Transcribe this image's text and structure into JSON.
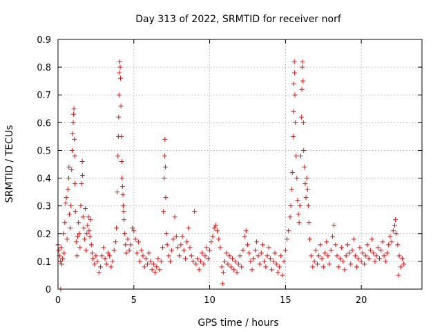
{
  "chart_data": {
    "type": "scatter",
    "title": "Day 313 of 2022, SRMTID for receiver norf",
    "xlabel": "GPS time / hours",
    "ylabel": "SRMTID / TECUs",
    "xlim": [
      0,
      24
    ],
    "ylim": [
      0,
      0.9
    ],
    "xticks": [
      0,
      5,
      10,
      15,
      20
    ],
    "xtick_labels": [
      "0",
      "5",
      "10",
      "15",
      "20"
    ],
    "yticks": [
      0,
      0.1,
      0.2,
      0.3,
      0.4,
      0.5,
      0.6,
      0.7,
      0.8,
      0.9
    ],
    "ytick_labels": [
      "0",
      "0.1",
      "0.2",
      "0.3",
      "0.4",
      "0.5",
      "0.6",
      "0.7",
      "0.8",
      "0.9"
    ],
    "grid": true,
    "marker": "+",
    "color": "#ff0000",
    "series": [
      {
        "name": "norf",
        "points": [
          [
            0.0,
            0.16
          ],
          [
            0.05,
            0.14
          ],
          [
            0.1,
            0.12
          ],
          [
            0.15,
            0.1
          ],
          [
            0.18,
            0.0
          ],
          [
            0.2,
            0.15
          ],
          [
            0.25,
            0.09
          ],
          [
            0.3,
            0.11
          ],
          [
            0.35,
            0.2
          ],
          [
            0.4,
            0.13
          ],
          [
            0.45,
            0.24
          ],
          [
            0.5,
            0.31
          ],
          [
            0.55,
            0.33
          ],
          [
            0.6,
            0.18
          ],
          [
            0.65,
            0.36
          ],
          [
            0.7,
            0.4
          ],
          [
            0.72,
            0.44
          ],
          [
            0.75,
            0.27
          ],
          [
            0.8,
            0.22
          ],
          [
            0.85,
            0.3
          ],
          [
            0.9,
            0.43
          ],
          [
            0.93,
            0.5
          ],
          [
            0.96,
            0.56
          ],
          [
            1.0,
            0.6
          ],
          [
            1.02,
            0.63
          ],
          [
            1.05,
            0.65
          ],
          [
            1.08,
            0.54
          ],
          [
            1.1,
            0.48
          ],
          [
            1.12,
            0.38
          ],
          [
            1.15,
            0.28
          ],
          [
            1.2,
            0.17
          ],
          [
            1.25,
            0.12
          ],
          [
            1.3,
            0.19
          ],
          [
            1.35,
            0.24
          ],
          [
            1.4,
            0.2
          ],
          [
            1.45,
            0.15
          ],
          [
            1.5,
            0.3
          ],
          [
            1.55,
            0.38
          ],
          [
            1.6,
            0.46
          ],
          [
            1.62,
            0.41
          ],
          [
            1.65,
            0.26
          ],
          [
            1.7,
            0.22
          ],
          [
            1.75,
            0.18
          ],
          [
            1.8,
            0.29
          ],
          [
            1.85,
            0.14
          ],
          [
            1.9,
            0.2
          ],
          [
            1.95,
            0.23
          ],
          [
            2.0,
            0.26
          ],
          [
            2.05,
            0.21
          ],
          [
            2.1,
            0.19
          ],
          [
            2.15,
            0.25
          ],
          [
            2.2,
            0.16
          ],
          [
            2.25,
            0.13
          ],
          [
            2.3,
            0.11
          ],
          [
            2.4,
            0.09
          ],
          [
            2.5,
            0.12
          ],
          [
            2.6,
            0.1
          ],
          [
            2.7,
            0.06
          ],
          [
            2.8,
            0.08
          ],
          [
            2.9,
            0.12
          ],
          [
            3.0,
            0.15
          ],
          [
            3.1,
            0.11
          ],
          [
            3.2,
            0.09
          ],
          [
            3.3,
            0.13
          ],
          [
            3.4,
            0.12
          ],
          [
            3.5,
            0.08
          ],
          [
            3.6,
            0.1
          ],
          [
            3.7,
            0.14
          ],
          [
            3.8,
            0.17
          ],
          [
            3.85,
            0.22
          ],
          [
            3.9,
            0.35
          ],
          [
            3.95,
            0.48
          ],
          [
            3.98,
            0.55
          ],
          [
            4.0,
            0.62
          ],
          [
            4.02,
            0.7
          ],
          [
            4.05,
            0.78
          ],
          [
            4.08,
            0.82
          ],
          [
            4.1,
            0.8
          ],
          [
            4.12,
            0.76
          ],
          [
            4.15,
            0.66
          ],
          [
            4.18,
            0.55
          ],
          [
            4.2,
            0.46
          ],
          [
            4.22,
            0.4
          ],
          [
            4.25,
            0.37
          ],
          [
            4.28,
            0.34
          ],
          [
            4.3,
            0.3
          ],
          [
            4.33,
            0.28
          ],
          [
            4.35,
            0.25
          ],
          [
            4.4,
            0.2
          ],
          [
            4.45,
            0.16
          ],
          [
            4.5,
            0.13
          ],
          [
            4.6,
            0.18
          ],
          [
            4.7,
            0.14
          ],
          [
            4.8,
            0.16
          ],
          [
            4.9,
            0.22
          ],
          [
            5.0,
            0.21
          ],
          [
            5.1,
            0.18
          ],
          [
            5.2,
            0.13
          ],
          [
            5.3,
            0.17
          ],
          [
            5.4,
            0.1
          ],
          [
            5.5,
            0.14
          ],
          [
            5.6,
            0.12
          ],
          [
            5.7,
            0.08
          ],
          [
            5.8,
            0.11
          ],
          [
            5.9,
            0.09
          ],
          [
            6.0,
            0.13
          ],
          [
            6.1,
            0.1
          ],
          [
            6.2,
            0.07
          ],
          [
            6.3,
            0.09
          ],
          [
            6.4,
            0.06
          ],
          [
            6.5,
            0.08
          ],
          [
            6.6,
            0.11
          ],
          [
            6.7,
            0.07
          ],
          [
            6.8,
            0.1
          ],
          [
            6.9,
            0.15
          ],
          [
            6.95,
            0.28
          ],
          [
            7.0,
            0.4
          ],
          [
            7.03,
            0.48
          ],
          [
            7.05,
            0.54
          ],
          [
            7.08,
            0.44
          ],
          [
            7.1,
            0.33
          ],
          [
            7.15,
            0.2
          ],
          [
            7.2,
            0.16
          ],
          [
            7.3,
            0.12
          ],
          [
            7.4,
            0.1
          ],
          [
            7.5,
            0.14
          ],
          [
            7.6,
            0.18
          ],
          [
            7.7,
            0.26
          ],
          [
            7.8,
            0.19
          ],
          [
            7.9,
            0.15
          ],
          [
            8.0,
            0.12
          ],
          [
            8.1,
            0.16
          ],
          [
            8.2,
            0.19
          ],
          [
            8.3,
            0.14
          ],
          [
            8.4,
            0.11
          ],
          [
            8.5,
            0.17
          ],
          [
            8.6,
            0.22
          ],
          [
            8.7,
            0.15
          ],
          [
            8.8,
            0.12
          ],
          [
            8.9,
            0.1
          ],
          [
            9.0,
            0.28
          ],
          [
            9.1,
            0.09
          ],
          [
            9.2,
            0.11
          ],
          [
            9.3,
            0.07
          ],
          [
            9.4,
            0.1
          ],
          [
            9.5,
            0.13
          ],
          [
            9.6,
            0.09
          ],
          [
            9.7,
            0.12
          ],
          [
            9.8,
            0.15
          ],
          [
            9.9,
            0.11
          ],
          [
            10.0,
            0.14
          ],
          [
            10.1,
            0.17
          ],
          [
            10.2,
            0.19
          ],
          [
            10.3,
            0.22
          ],
          [
            10.4,
            0.23
          ],
          [
            10.5,
            0.21
          ],
          [
            10.6,
            0.18
          ],
          [
            10.7,
            0.15
          ],
          [
            10.8,
            0.08
          ],
          [
            10.85,
            0.02
          ],
          [
            10.9,
            0.06
          ],
          [
            11.0,
            0.1
          ],
          [
            11.1,
            0.13
          ],
          [
            11.2,
            0.09
          ],
          [
            11.3,
            0.12
          ],
          [
            11.4,
            0.08
          ],
          [
            11.5,
            0.11
          ],
          [
            11.6,
            0.07
          ],
          [
            11.7,
            0.1
          ],
          [
            11.8,
            0.06
          ],
          [
            11.9,
            0.09
          ],
          [
            12.0,
            0.12
          ],
          [
            12.1,
            0.08
          ],
          [
            12.2,
            0.14
          ],
          [
            12.3,
            0.19
          ],
          [
            12.4,
            0.21
          ],
          [
            12.5,
            0.16
          ],
          [
            12.6,
            0.13
          ],
          [
            12.7,
            0.1
          ],
          [
            12.8,
            0.07
          ],
          [
            12.9,
            0.11
          ],
          [
            13.0,
            0.14
          ],
          [
            13.1,
            0.17
          ],
          [
            13.2,
            0.12
          ],
          [
            13.3,
            0.09
          ],
          [
            13.4,
            0.13
          ],
          [
            13.5,
            0.16
          ],
          [
            13.6,
            0.1
          ],
          [
            13.7,
            0.08
          ],
          [
            13.8,
            0.12
          ],
          [
            13.9,
            0.15
          ],
          [
            14.0,
            0.11
          ],
          [
            14.1,
            0.07
          ],
          [
            14.2,
            0.1
          ],
          [
            14.3,
            0.13
          ],
          [
            14.4,
            0.09
          ],
          [
            14.5,
            0.06
          ],
          [
            14.6,
            0.08
          ],
          [
            14.7,
            0.12
          ],
          [
            14.8,
            0.05
          ],
          [
            14.9,
            0.1
          ],
          [
            15.0,
            0.14
          ],
          [
            15.1,
            0.18
          ],
          [
            15.2,
            0.21
          ],
          [
            15.3,
            0.26
          ],
          [
            15.35,
            0.3
          ],
          [
            15.4,
            0.36
          ],
          [
            15.45,
            0.42
          ],
          [
            15.5,
            0.55
          ],
          [
            15.53,
            0.64
          ],
          [
            15.55,
            0.74
          ],
          [
            15.58,
            0.82
          ],
          [
            15.6,
            0.78
          ],
          [
            15.62,
            0.7
          ],
          [
            15.65,
            0.6
          ],
          [
            15.7,
            0.48
          ],
          [
            15.75,
            0.4
          ],
          [
            15.8,
            0.32
          ],
          [
            15.85,
            0.27
          ],
          [
            15.9,
            0.24
          ],
          [
            15.95,
            0.3
          ],
          [
            16.0,
            0.48
          ],
          [
            16.05,
            0.62
          ],
          [
            16.08,
            0.72
          ],
          [
            16.1,
            0.8
          ],
          [
            16.12,
            0.82
          ],
          [
            16.15,
            0.75
          ],
          [
            16.18,
            0.6
          ],
          [
            16.2,
            0.5
          ],
          [
            16.25,
            0.44
          ],
          [
            16.3,
            0.38
          ],
          [
            16.35,
            0.33
          ],
          [
            16.4,
            0.4
          ],
          [
            16.45,
            0.36
          ],
          [
            16.5,
            0.3
          ],
          [
            16.55,
            0.24
          ],
          [
            16.6,
            0.18
          ],
          [
            16.7,
            0.12
          ],
          [
            16.8,
            0.08
          ],
          [
            16.9,
            0.1
          ],
          [
            17.0,
            0.14
          ],
          [
            17.1,
            0.09
          ],
          [
            17.2,
            0.12
          ],
          [
            17.3,
            0.16
          ],
          [
            17.4,
            0.11
          ],
          [
            17.5,
            0.08
          ],
          [
            17.6,
            0.13
          ],
          [
            17.7,
            0.17
          ],
          [
            17.8,
            0.12
          ],
          [
            17.9,
            0.09
          ],
          [
            18.0,
            0.14
          ],
          [
            18.1,
            0.19
          ],
          [
            18.2,
            0.23
          ],
          [
            18.3,
            0.16
          ],
          [
            18.4,
            0.12
          ],
          [
            18.5,
            0.08
          ],
          [
            18.6,
            0.11
          ],
          [
            18.7,
            0.15
          ],
          [
            18.8,
            0.1
          ],
          [
            18.9,
            0.07
          ],
          [
            19.0,
            0.12
          ],
          [
            19.1,
            0.16
          ],
          [
            19.2,
            0.13
          ],
          [
            19.3,
            0.09
          ],
          [
            19.4,
            0.14
          ],
          [
            19.5,
            0.18
          ],
          [
            19.6,
            0.12
          ],
          [
            19.7,
            0.08
          ],
          [
            19.8,
            0.11
          ],
          [
            19.9,
            0.15
          ],
          [
            20.0,
            0.1
          ],
          [
            20.1,
            0.13
          ],
          [
            20.2,
            0.09
          ],
          [
            20.3,
            0.12
          ],
          [
            20.4,
            0.16
          ],
          [
            20.5,
            0.11
          ],
          [
            20.6,
            0.14
          ],
          [
            20.7,
            0.18
          ],
          [
            20.8,
            0.13
          ],
          [
            20.9,
            0.1
          ],
          [
            21.0,
            0.12
          ],
          [
            21.1,
            0.15
          ],
          [
            21.2,
            0.11
          ],
          [
            21.3,
            0.14
          ],
          [
            21.4,
            0.17
          ],
          [
            21.5,
            0.12
          ],
          [
            21.6,
            0.1
          ],
          [
            21.7,
            0.13
          ],
          [
            21.8,
            0.16
          ],
          [
            21.9,
            0.19
          ],
          [
            22.0,
            0.17
          ],
          [
            22.1,
            0.21
          ],
          [
            22.2,
            0.23
          ],
          [
            22.25,
            0.25
          ],
          [
            22.3,
            0.2
          ],
          [
            22.4,
            0.16
          ],
          [
            22.45,
            0.05
          ],
          [
            22.5,
            0.12
          ],
          [
            22.6,
            0.08
          ],
          [
            22.7,
            0.11
          ],
          [
            22.8,
            0.09
          ]
        ]
      }
    ]
  }
}
